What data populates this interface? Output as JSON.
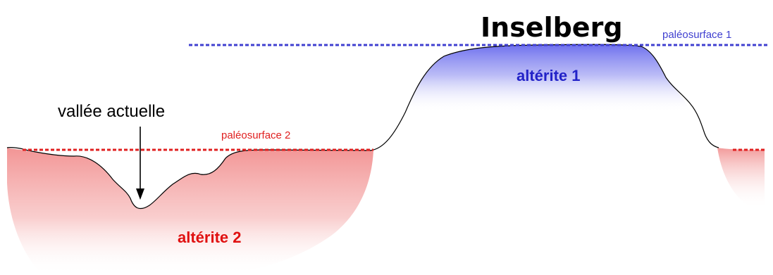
{
  "title": "Inselberg",
  "labels": {
    "paleosurface1": "paléosurface 1",
    "paleosurface2": "paléosurface 2",
    "alterite1": "altérite 1",
    "alterite2": "altérite 2",
    "vallee": "vallée actuelle"
  },
  "colors": {
    "blue": "#4040d0",
    "red": "#e02020",
    "blue_fill": "#7a7cf0",
    "red_fill": "#f39a9a"
  }
}
